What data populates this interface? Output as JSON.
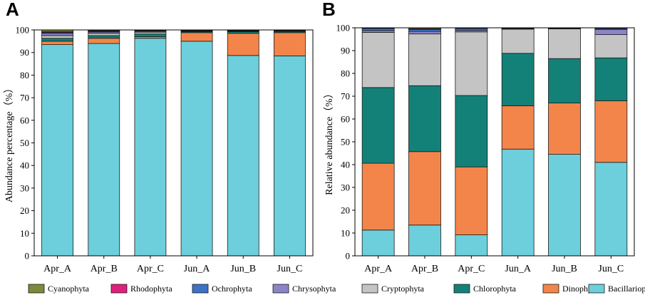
{
  "chart_data": [
    {
      "type": "bar",
      "stacked": true,
      "panel_label": "A",
      "ylabel": "Abundance percentage（%）",
      "ylim": [
        0,
        100
      ],
      "yticks": [
        0,
        10,
        20,
        30,
        40,
        50,
        60,
        70,
        80,
        90,
        100
      ],
      "categories": [
        "Apr_A",
        "Apr_B",
        "Apr_C",
        "Jun_A",
        "Jun_B",
        "Jun_C"
      ],
      "series": [
        {
          "name": "Bacillariophyta",
          "color": "#6dcfdc",
          "values": [
            93.5,
            94.0,
            96.3,
            95.0,
            88.7,
            88.5
          ]
        },
        {
          "name": "Dinophyta",
          "color": "#f4854a",
          "values": [
            1.5,
            2.3,
            0.7,
            3.8,
            9.8,
            10.3
          ]
        },
        {
          "name": "Chlorophyta",
          "color": "#138177",
          "values": [
            1.3,
            1.2,
            1.2,
            0.4,
            0.7,
            0.5
          ]
        },
        {
          "name": "Cryptophyta",
          "color": "#c4c4c4",
          "values": [
            1.2,
            1.0,
            0.8,
            0.2,
            0.2,
            0.1
          ]
        },
        {
          "name": "Chrysophyta",
          "color": "#8b84c9",
          "values": [
            1.0,
            0.6,
            0.4,
            0.2,
            0.2,
            0.2
          ]
        },
        {
          "name": "Ochrophyta",
          "color": "#3b73c6",
          "values": [
            0.4,
            0.3,
            0.2,
            0.1,
            0.1,
            0.1
          ]
        },
        {
          "name": "Rhodophyta",
          "color": "#e0207e",
          "values": [
            0.3,
            0.3,
            0.2,
            0.1,
            0.1,
            0.1
          ]
        },
        {
          "name": "Cyanophyta",
          "color": "#7c8a3a",
          "values": [
            0.8,
            0.3,
            0.2,
            0.2,
            0.2,
            0.2
          ]
        }
      ]
    },
    {
      "type": "bar",
      "stacked": true,
      "panel_label": "B",
      "ylabel": "Relative abundance（%）",
      "ylim": [
        0,
        100
      ],
      "yticks": [
        0,
        10,
        20,
        30,
        40,
        50,
        60,
        70,
        80,
        90,
        100
      ],
      "categories": [
        "Apr_A",
        "Apr_B",
        "Apr_C",
        "Jun_A",
        "Jun_B",
        "Jun_C"
      ],
      "series": [
        {
          "name": "Bacillariophyta",
          "color": "#6dcfdc",
          "values": [
            11.3,
            13.5,
            9.2,
            46.8,
            44.5,
            41.0
          ]
        },
        {
          "name": "Dinophyta",
          "color": "#f4854a",
          "values": [
            29.3,
            32.2,
            29.8,
            19.0,
            22.5,
            27.0
          ]
        },
        {
          "name": "Chlorophyta",
          "color": "#138177",
          "values": [
            33.2,
            28.9,
            31.3,
            23.0,
            19.5,
            18.8
          ]
        },
        {
          "name": "Cryptophyta",
          "color": "#c4c4c4",
          "values": [
            24.2,
            22.7,
            27.9,
            10.6,
            13.0,
            10.2
          ]
        },
        {
          "name": "Chrysophyta",
          "color": "#8b84c9",
          "values": [
            0.8,
            1.1,
            0.7,
            0.1,
            0.1,
            2.3
          ]
        },
        {
          "name": "Ochrophyta",
          "color": "#3b73c6",
          "values": [
            0.9,
            0.9,
            0.8,
            0.2,
            0.1,
            0.4
          ]
        },
        {
          "name": "Rhodophyta",
          "color": "#e0207e",
          "values": [
            0.1,
            0.3,
            0.1,
            0.1,
            0.1,
            0.1
          ]
        },
        {
          "name": "Cyanophyta",
          "color": "#7c8a3a",
          "values": [
            0.2,
            0.4,
            0.2,
            0.2,
            0.2,
            0.2
          ]
        }
      ]
    }
  ],
  "legend": [
    {
      "name": "Cyanophyta",
      "color": "#7c8a3a"
    },
    {
      "name": "Rhodophyta",
      "color": "#e0207e"
    },
    {
      "name": "Ochrophyta",
      "color": "#3b73c6"
    },
    {
      "name": "Chrysophyta",
      "color": "#8b84c9"
    },
    {
      "name": "Cryptophyta",
      "color": "#c4c4c4"
    },
    {
      "name": "Chlorophyta",
      "color": "#138177"
    },
    {
      "name": "Dinophyta",
      "color": "#f4854a"
    },
    {
      "name": "Bacillariophyta",
      "color": "#6dcfdc"
    }
  ]
}
